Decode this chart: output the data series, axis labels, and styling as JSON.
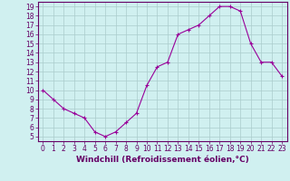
{
  "x": [
    0,
    1,
    2,
    3,
    4,
    5,
    6,
    7,
    8,
    9,
    10,
    11,
    12,
    13,
    14,
    15,
    16,
    17,
    18,
    19,
    20,
    21,
    22,
    23
  ],
  "y": [
    10,
    9,
    8,
    7.5,
    7,
    5.5,
    5,
    5.5,
    6.5,
    7.5,
    10.5,
    12.5,
    13,
    16,
    16.5,
    17,
    18,
    19,
    19,
    18.5,
    15,
    13,
    13,
    11.5
  ],
  "line_color": "#990099",
  "marker": "+",
  "bg_color": "#d0f0f0",
  "grid_color": "#aacccc",
  "xlabel": "Windchill (Refroidissement éolien,°C)",
  "xlim": [
    -0.5,
    23.5
  ],
  "ylim": [
    4.5,
    19.5
  ],
  "yticks": [
    5,
    6,
    7,
    8,
    9,
    10,
    11,
    12,
    13,
    14,
    15,
    16,
    17,
    18,
    19
  ],
  "xticks": [
    0,
    1,
    2,
    3,
    4,
    5,
    6,
    7,
    8,
    9,
    10,
    11,
    12,
    13,
    14,
    15,
    16,
    17,
    18,
    19,
    20,
    21,
    22,
    23
  ],
  "spine_color": "#660066",
  "tick_fontsize": 5.5,
  "xlabel_fontsize": 6.5,
  "label_color": "#660066"
}
